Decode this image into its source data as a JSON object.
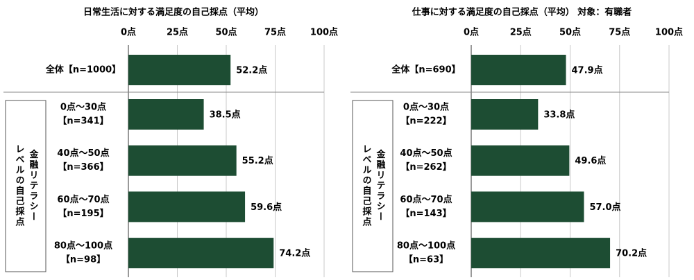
{
  "chart_data": [
    {
      "type": "bar",
      "orientation": "horizontal",
      "title": "日常生活に対する満足度の自己採点（平均）",
      "categories": [
        [
          "全体【n=1000】"
        ],
        [
          "0点～30点",
          "【n=341】"
        ],
        [
          "40点～50点",
          "【n=366】"
        ],
        [
          "60点～70点",
          "【n=195】"
        ],
        [
          "80点～100点",
          "【n=98】"
        ]
      ],
      "group_label": [
        "金融リテラシー",
        "レベルの自己採点"
      ],
      "values": [
        52.2,
        38.5,
        55.2,
        59.6,
        74.2
      ],
      "value_labels": [
        "52.2点",
        "38.5点",
        "55.2点",
        "59.6点",
        "74.2点"
      ],
      "color": "#1d4d33",
      "xlim": [
        0,
        100
      ],
      "xticks": [
        {
          "value": 0,
          "label": "0点"
        },
        {
          "value": 25,
          "label": "25点"
        },
        {
          "value": 50,
          "label": "50点"
        },
        {
          "value": 75,
          "label": "75点"
        },
        {
          "value": 100,
          "label": "100点"
        }
      ],
      "grid": true
    },
    {
      "type": "bar",
      "orientation": "horizontal",
      "title": "仕事に対する満足度の自己採点（平均） 対象：有職者",
      "categories": [
        [
          "全体【n=690】"
        ],
        [
          "0点～30点",
          "【n=222】"
        ],
        [
          "40点～50点",
          "【n=262】"
        ],
        [
          "60点～70点",
          "【n=143】"
        ],
        [
          "80点～100点",
          "【n=63】"
        ]
      ],
      "group_label": [
        "金融リテラシー",
        "レベルの自己採点"
      ],
      "values": [
        47.9,
        33.8,
        49.6,
        57.0,
        70.2
      ],
      "value_labels": [
        "47.9点",
        "33.8点",
        "49.6点",
        "57.0点",
        "70.2点"
      ],
      "color": "#1d4d33",
      "xlim": [
        0,
        100
      ],
      "xticks": [
        {
          "value": 0,
          "label": "0点"
        },
        {
          "value": 25,
          "label": "25点"
        },
        {
          "value": 50,
          "label": "50点"
        },
        {
          "value": 75,
          "label": "75点"
        },
        {
          "value": 100,
          "label": "100点"
        }
      ],
      "grid": true
    }
  ]
}
